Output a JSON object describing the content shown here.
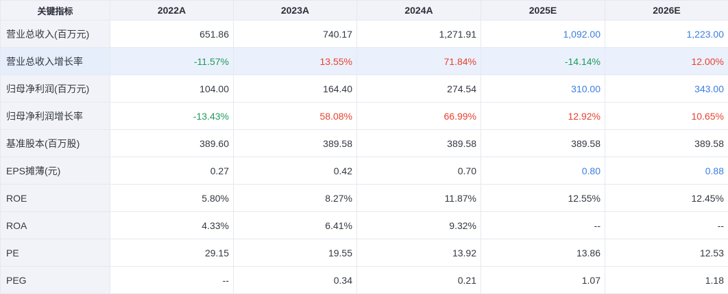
{
  "header": [
    "关键指标",
    "2022A",
    "2023A",
    "2024A",
    "2025E",
    "2026E"
  ],
  "colors": {
    "header_bg": "#f2f3f8",
    "label_bg": "#f2f3f8",
    "highlight_row_bg": "#eaf1fd",
    "estimate_blue": "#3a7ee0",
    "positive_red": "#e8412d",
    "negative_green": "#1f9a5b",
    "default_text": "#333840"
  },
  "rows": [
    {
      "label": "营业总收入(百万元)",
      "highlight": false,
      "cells": [
        {
          "v": "651.86",
          "c": ""
        },
        {
          "v": "740.17",
          "c": ""
        },
        {
          "v": "1,271.91",
          "c": ""
        },
        {
          "v": "1,092.00",
          "c": "blue"
        },
        {
          "v": "1,223.00",
          "c": "blue"
        }
      ]
    },
    {
      "label": "营业总收入增长率",
      "highlight": true,
      "cells": [
        {
          "v": "-11.57%",
          "c": "green"
        },
        {
          "v": "13.55%",
          "c": "red"
        },
        {
          "v": "71.84%",
          "c": "red"
        },
        {
          "v": "-14.14%",
          "c": "green"
        },
        {
          "v": "12.00%",
          "c": "red"
        }
      ]
    },
    {
      "label": "归母净利润(百万元)",
      "highlight": false,
      "cells": [
        {
          "v": "104.00",
          "c": ""
        },
        {
          "v": "164.40",
          "c": ""
        },
        {
          "v": "274.54",
          "c": ""
        },
        {
          "v": "310.00",
          "c": "blue"
        },
        {
          "v": "343.00",
          "c": "blue"
        }
      ]
    },
    {
      "label": "归母净利润增长率",
      "highlight": false,
      "cells": [
        {
          "v": "-13.43%",
          "c": "green"
        },
        {
          "v": "58.08%",
          "c": "red"
        },
        {
          "v": "66.99%",
          "c": "red"
        },
        {
          "v": "12.92%",
          "c": "red"
        },
        {
          "v": "10.65%",
          "c": "red"
        }
      ]
    },
    {
      "label": "基准股本(百万股)",
      "highlight": false,
      "cells": [
        {
          "v": "389.60",
          "c": ""
        },
        {
          "v": "389.58",
          "c": ""
        },
        {
          "v": "389.58",
          "c": ""
        },
        {
          "v": "389.58",
          "c": ""
        },
        {
          "v": "389.58",
          "c": ""
        }
      ]
    },
    {
      "label": "EPS摊薄(元)",
      "highlight": false,
      "cells": [
        {
          "v": "0.27",
          "c": ""
        },
        {
          "v": "0.42",
          "c": ""
        },
        {
          "v": "0.70",
          "c": ""
        },
        {
          "v": "0.80",
          "c": "blue"
        },
        {
          "v": "0.88",
          "c": "blue"
        }
      ]
    },
    {
      "label": "ROE",
      "highlight": false,
      "cells": [
        {
          "v": "5.80%",
          "c": ""
        },
        {
          "v": "8.27%",
          "c": ""
        },
        {
          "v": "11.87%",
          "c": ""
        },
        {
          "v": "12.55%",
          "c": ""
        },
        {
          "v": "12.45%",
          "c": ""
        }
      ]
    },
    {
      "label": "ROA",
      "highlight": false,
      "cells": [
        {
          "v": "4.33%",
          "c": ""
        },
        {
          "v": "6.41%",
          "c": ""
        },
        {
          "v": "9.32%",
          "c": ""
        },
        {
          "v": "--",
          "c": ""
        },
        {
          "v": "--",
          "c": ""
        }
      ]
    },
    {
      "label": "PE",
      "highlight": false,
      "cells": [
        {
          "v": "29.15",
          "c": ""
        },
        {
          "v": "19.55",
          "c": ""
        },
        {
          "v": "13.92",
          "c": ""
        },
        {
          "v": "13.86",
          "c": ""
        },
        {
          "v": "12.53",
          "c": ""
        }
      ]
    },
    {
      "label": "PEG",
      "highlight": false,
      "cells": [
        {
          "v": "--",
          "c": ""
        },
        {
          "v": "0.34",
          "c": ""
        },
        {
          "v": "0.21",
          "c": ""
        },
        {
          "v": "1.07",
          "c": ""
        },
        {
          "v": "1.18",
          "c": ""
        }
      ]
    }
  ]
}
